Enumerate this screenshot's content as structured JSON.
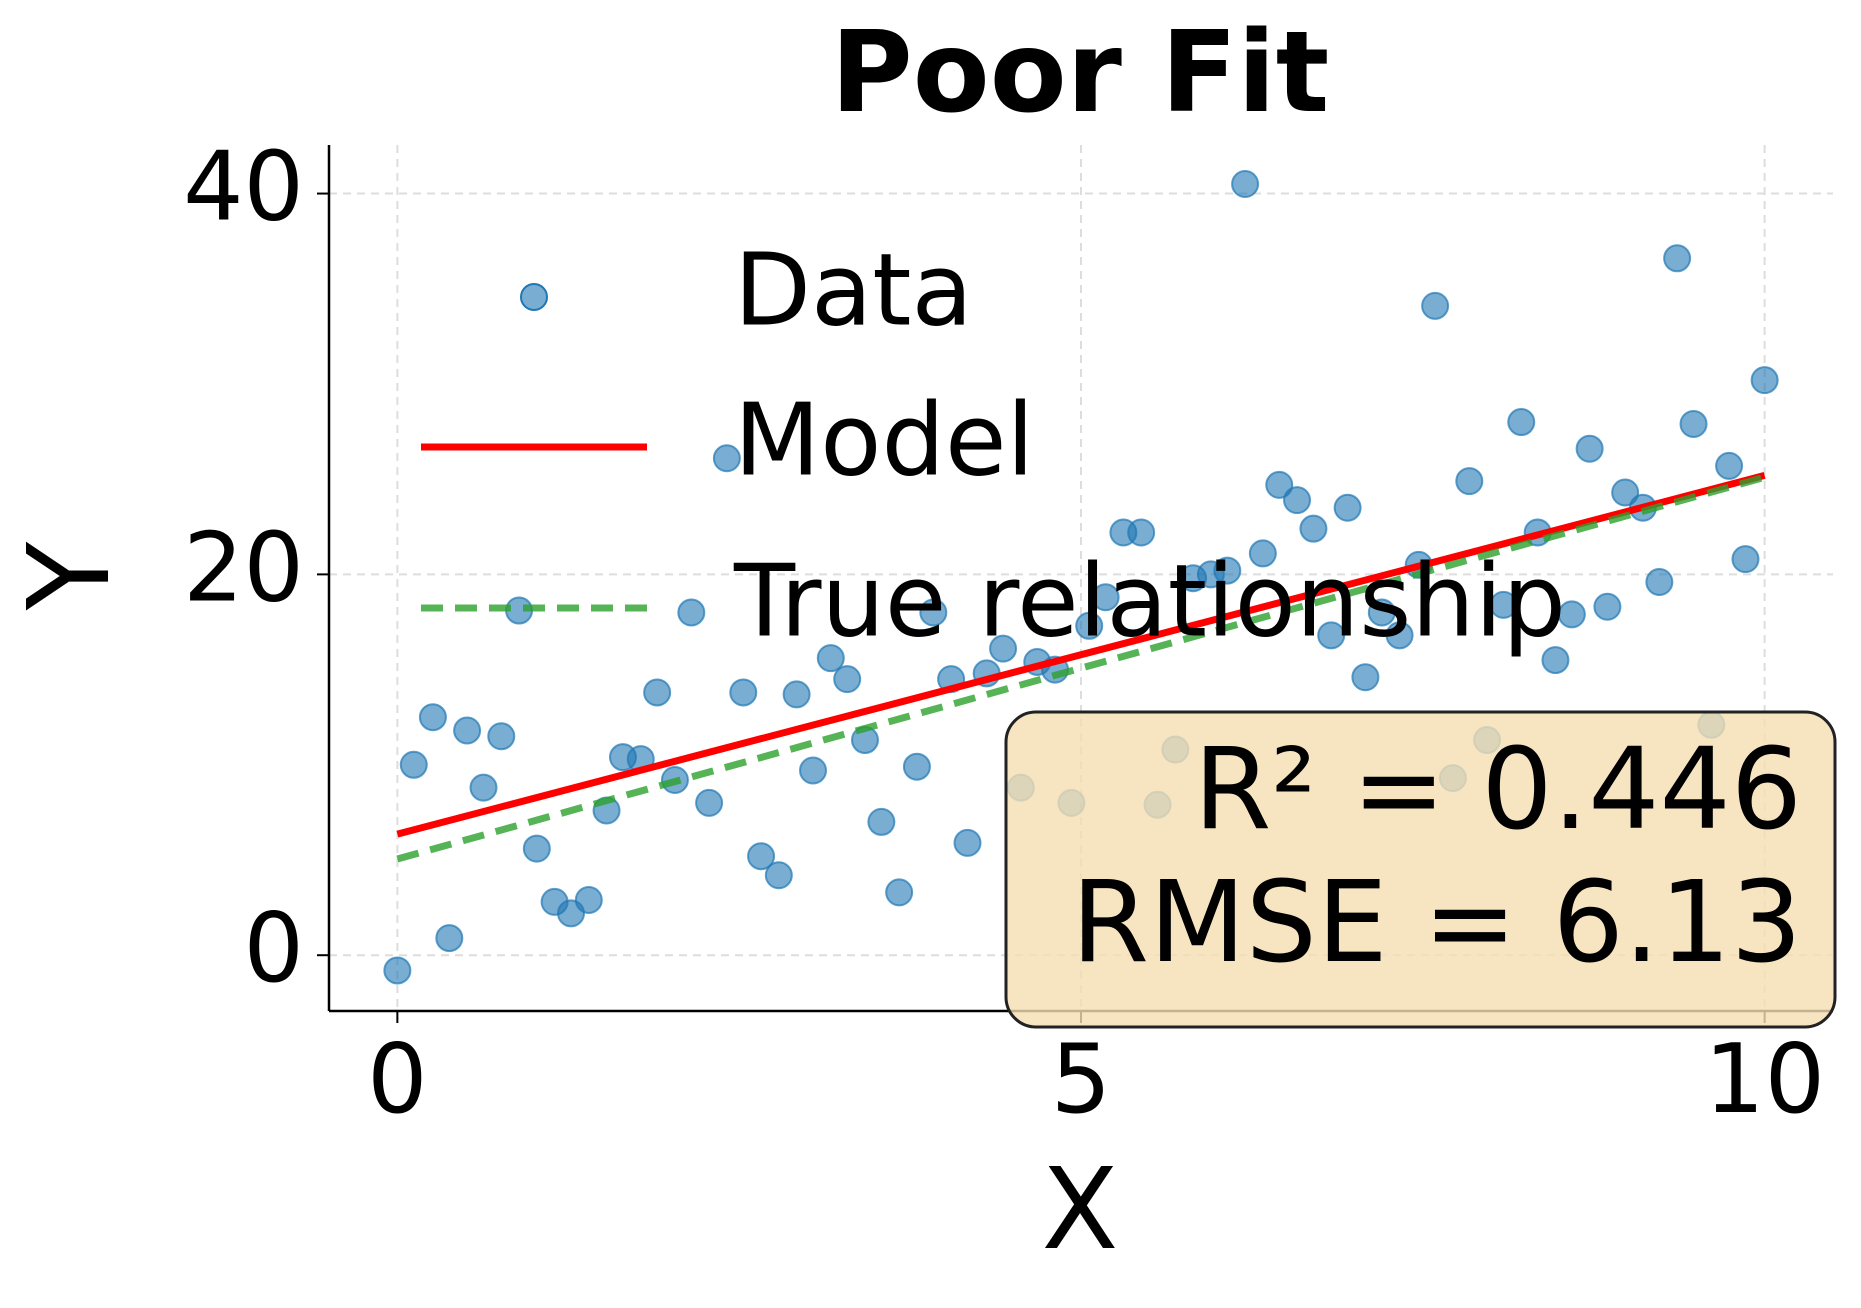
{
  "chart_data": {
    "type": "scatter",
    "title": "Poor Fit",
    "x_label": "X",
    "y_label": "Y",
    "xlim": [
      -0.5,
      10.5
    ],
    "ylim": [
      -2.93,
      42.55
    ],
    "xticks": [
      0,
      5,
      10
    ],
    "yticks": [
      0,
      20,
      40
    ],
    "grid": true,
    "legend": "upper left",
    "series": [
      {
        "name": "Data",
        "color": "#1f77b4",
        "x": [
          0,
          0.12,
          0.26,
          0.38,
          0.51,
          0.63,
          0.76,
          0.89,
          1.02,
          1.15,
          1.27,
          1.4,
          1.53,
          1.65,
          1.78,
          1.9,
          2.03,
          2.15,
          2.28,
          2.41,
          2.53,
          2.66,
          2.79,
          2.92,
          3.04,
          3.17,
          3.29,
          3.42,
          3.54,
          3.67,
          3.8,
          3.92,
          4.05,
          4.17,
          4.31,
          4.43,
          4.56,
          4.68,
          4.81,
          4.93,
          5.06,
          5.18,
          5.31,
          5.44,
          5.56,
          5.69,
          5.82,
          5.95,
          6.07,
          6.2,
          6.33,
          6.45,
          6.58,
          6.7,
          6.83,
          6.95,
          7.08,
          7.2,
          7.33,
          7.47,
          7.59,
          7.72,
          7.84,
          7.97,
          8.09,
          8.22,
          8.34,
          8.47,
          8.59,
          8.72,
          8.85,
          8.98,
          9.11,
          9.23,
          9.36,
          9.48,
          9.61,
          9.74,
          9.86,
          10.0
        ],
        "values": [
          -0.8,
          10.0,
          12.5,
          0.9,
          11.8,
          8.8,
          11.5,
          18.1,
          5.6,
          2.8,
          2.2,
          2.9,
          7.6,
          10.4,
          10.3,
          13.8,
          9.2,
          18.0,
          8.0,
          26.1,
          13.8,
          5.2,
          4.2,
          13.7,
          9.7,
          15.6,
          14.5,
          11.3,
          7.0,
          3.3,
          9.9,
          18.0,
          14.5,
          5.9,
          14.8,
          16.1,
          8.8,
          15.4,
          15.0,
          8.0,
          17.3,
          18.8,
          22.2,
          22.2,
          7.9,
          10.8,
          19.8,
          20.0,
          20.2,
          40.5,
          21.1,
          24.7,
          23.9,
          22.4,
          16.8,
          23.5,
          14.6,
          18.0,
          16.8,
          20.5,
          34.1,
          9.3,
          24.9,
          11.3,
          18.4,
          28.0,
          22.2,
          15.5,
          17.9,
          26.6,
          18.3,
          24.3,
          23.5,
          19.6,
          36.6,
          27.9,
          12.1,
          25.7,
          20.8,
          30.2
        ]
      },
      {
        "name": "Model",
        "type": "line",
        "color": "#ff0000",
        "x": [
          0,
          10
        ],
        "values": [
          6.36,
          25.2
        ]
      },
      {
        "name": "True relationship",
        "type": "line",
        "color": "#2ca02c",
        "dashed": true,
        "x": [
          0,
          10
        ],
        "values": [
          5.05,
          25.1
        ]
      }
    ],
    "annotation": [
      "R² = 0.446",
      "RMSE = 6.13"
    ]
  }
}
